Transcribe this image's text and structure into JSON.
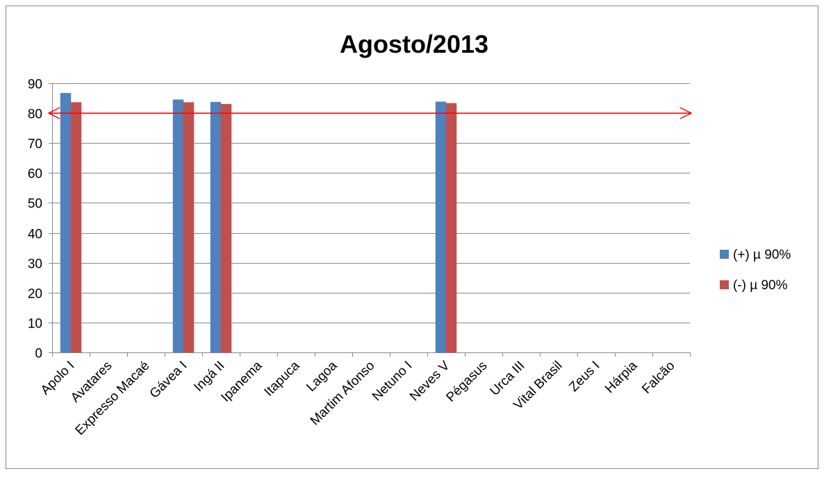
{
  "chart_data": {
    "type": "bar",
    "title": "Agosto/2013",
    "xlabel": "",
    "ylabel": "",
    "ylim": [
      0,
      90
    ],
    "yticks": [
      0,
      10,
      20,
      30,
      40,
      50,
      60,
      70,
      80,
      90
    ],
    "grid": true,
    "legend_position": "right",
    "categories": [
      "Apolo I",
      "Avatares",
      "Expresso Macaé",
      "Gávea I",
      "Ingá II",
      "Ipanema",
      "Itapuca",
      "Lagoa",
      "Martim Afonso",
      "Netuno I",
      "Neves V",
      "Pégasus",
      "Urca III",
      "Vital Brasil",
      "Zeus I",
      "Hárpia",
      "Falcão"
    ],
    "series": [
      {
        "name": "(+) µ 90%",
        "color": "#4F81BD",
        "values": [
          86.7,
          0,
          0,
          84.5,
          83.7,
          0,
          0,
          0,
          0,
          0,
          83.8,
          0,
          0,
          0,
          0,
          0,
          0
        ]
      },
      {
        "name": "(-) µ 90%",
        "color": "#C0504D",
        "values": [
          83.6,
          0,
          0,
          83.6,
          83.0,
          0,
          0,
          0,
          0,
          0,
          83.3,
          0,
          0,
          0,
          0,
          0,
          0
        ]
      }
    ],
    "reference_line": {
      "value": 80,
      "color": "#FF0000"
    }
  }
}
